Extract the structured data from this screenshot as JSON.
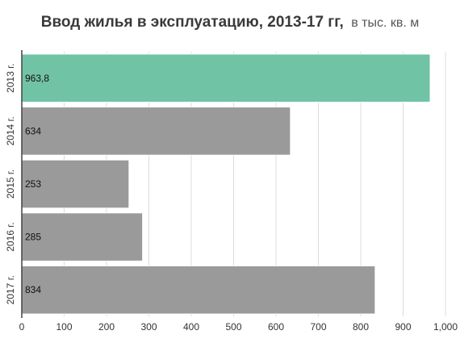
{
  "chart_data": {
    "type": "bar",
    "orientation": "horizontal",
    "title": "Ввод жилья в эксплуатацию, 2013-17 гг,",
    "subtitle": "в тыс. кв. м",
    "categories": [
      "2013 г.",
      "2014 г.",
      "2015 г.",
      "2016 г.",
      "2017 г."
    ],
    "values": [
      963.8,
      634,
      253,
      285,
      834
    ],
    "data_labels": [
      "963,8",
      "634",
      "253",
      "285",
      "834"
    ],
    "highlight_index": 0,
    "xlim": [
      0,
      1000
    ],
    "x_ticks": [
      0,
      100,
      200,
      300,
      400,
      500,
      600,
      700,
      800,
      900,
      1000
    ],
    "x_tick_labels": [
      "0",
      "100",
      "200",
      "300",
      "400",
      "500",
      "600",
      "700",
      "800",
      "900",
      "1,000"
    ],
    "grid": true,
    "colors": {
      "highlight": "#71c3a6",
      "default": "#9a9a9a",
      "bar_border": "#ffffff"
    }
  }
}
